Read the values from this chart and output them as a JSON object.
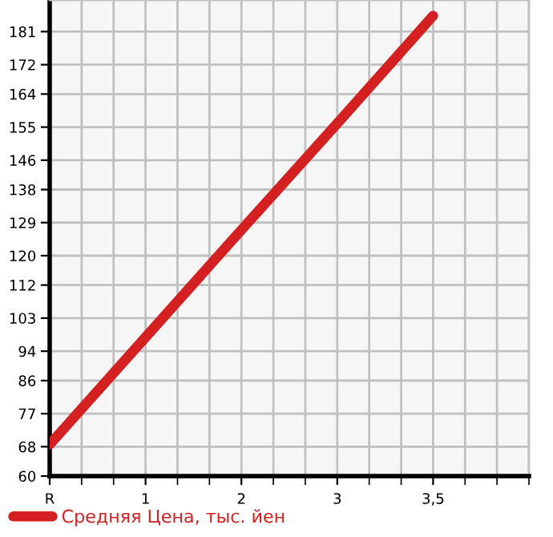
{
  "chart_data": {
    "type": "line",
    "categories": [
      "R",
      "1",
      "2",
      "3",
      "3,5"
    ],
    "series": [
      {
        "name": "Средняя Цена, тыс. йен",
        "color": "#d42020",
        "values": [
          68.6,
          97.8,
          127,
          156,
          185.3
        ]
      }
    ],
    "ylim": [
      60,
      189.6
    ],
    "yticks": [
      60,
      68,
      77,
      86,
      94,
      103,
      112,
      120,
      129,
      138,
      146,
      155,
      164,
      172,
      181
    ],
    "grid": true,
    "legend": "bottom left",
    "marker": "none",
    "line_style": "solid"
  }
}
